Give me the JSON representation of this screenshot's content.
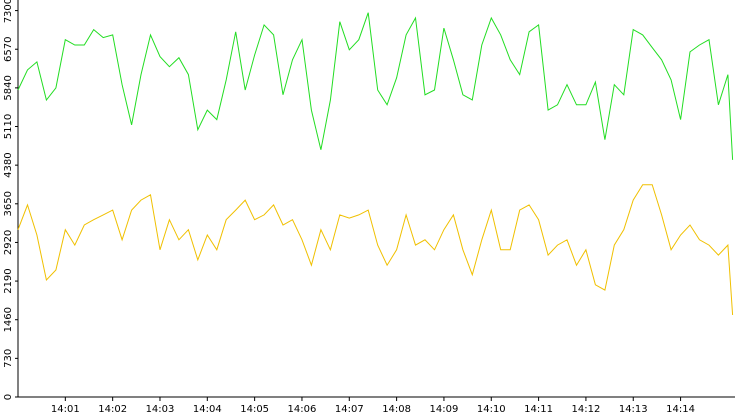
{
  "chart_data": {
    "type": "line",
    "x": [
      840,
      840.2,
      840.4,
      840.6,
      840.8,
      841,
      841.2,
      841.4,
      841.6,
      841.8,
      842,
      842.2,
      842.4,
      842.6,
      842.8,
      843,
      843.2,
      843.4,
      843.6,
      843.8,
      844,
      844.2,
      844.4,
      844.6,
      844.8,
      845,
      845.2,
      845.4,
      845.6,
      845.8,
      846,
      846.2,
      846.4,
      846.6,
      846.8,
      847,
      847.2,
      847.4,
      847.6,
      847.8,
      848,
      848.2,
      848.4,
      848.6,
      848.8,
      849,
      849.2,
      849.4,
      849.6,
      849.8,
      850,
      850.2,
      850.4,
      850.6,
      850.8,
      851,
      851.2,
      851.4,
      851.6,
      851.8,
      852,
      852.2,
      852.4,
      852.6,
      852.8,
      853,
      853.2,
      853.4,
      853.6,
      853.8,
      854,
      854.2,
      854.4,
      854.6,
      854.8,
      855,
      855.1
    ],
    "series": [
      {
        "color": "#22dd22",
        "values": [
          5800,
          6180,
          6330,
          5610,
          5840,
          6750,
          6650,
          6650,
          6940,
          6790,
          6840,
          5900,
          5140,
          6090,
          6840,
          6430,
          6240,
          6410,
          6090,
          5050,
          5420,
          5240,
          5990,
          6900,
          5800,
          6460,
          7030,
          6840,
          5710,
          6370,
          6750,
          5420,
          4670,
          5610,
          7090,
          6560,
          6750,
          7260,
          5800,
          5520,
          6030,
          6840,
          7160,
          5710,
          5800,
          6970,
          6370,
          5710,
          5610,
          6650,
          7160,
          6840,
          6370,
          6090,
          6900,
          7030,
          5420,
          5520,
          5900,
          5520,
          5520,
          5950,
          4860,
          5900,
          5710,
          6940,
          6840,
          6600,
          6370,
          5990,
          5240,
          6520,
          6650,
          6750,
          5520,
          6090,
          4480
        ]
      },
      {
        "color": "#f0c000",
        "values": [
          3160,
          3630,
          3060,
          2210,
          2400,
          3160,
          2870,
          3250,
          3350,
          3440,
          3530,
          2970,
          3530,
          3720,
          3820,
          2780,
          3350,
          2970,
          3160,
          2590,
          3060,
          2780,
          3350,
          3530,
          3720,
          3350,
          3440,
          3630,
          3250,
          3350,
          2970,
          2490,
          3160,
          2780,
          3440,
          3380,
          3440,
          3530,
          2870,
          2490,
          2780,
          3440,
          2870,
          2970,
          2780,
          3160,
          3440,
          2780,
          2310,
          2970,
          3530,
          2780,
          2780,
          3530,
          3630,
          3350,
          2680,
          2870,
          2970,
          2490,
          2780,
          2120,
          2020,
          2870,
          3160,
          3720,
          4010,
          4010,
          3440,
          2780,
          3060,
          3250,
          2970,
          2870,
          2680,
          2870,
          1550
        ]
      }
    ],
    "xlim": [
      840,
      855.15
    ],
    "xticks": [
      {
        "value": 841,
        "label": "14:01"
      },
      {
        "value": 842,
        "label": "14:02"
      },
      {
        "value": 843,
        "label": "14:03"
      },
      {
        "value": 844,
        "label": "14:04"
      },
      {
        "value": 845,
        "label": "14:05"
      },
      {
        "value": 846,
        "label": "14:06"
      },
      {
        "value": 847,
        "label": "14:07"
      },
      {
        "value": 848,
        "label": "14:08"
      },
      {
        "value": 849,
        "label": "14:09"
      },
      {
        "value": 850,
        "label": "14:10"
      },
      {
        "value": 851,
        "label": "14:11"
      },
      {
        "value": 852,
        "label": "14:12"
      },
      {
        "value": 853,
        "label": "14:13"
      },
      {
        "value": 854,
        "label": "14:14"
      }
    ],
    "ylim": [
      0,
      7500
    ],
    "yticks": [
      0,
      730,
      1460,
      2190,
      2920,
      3650,
      4380,
      5110,
      5840,
      6570,
      7300
    ]
  }
}
